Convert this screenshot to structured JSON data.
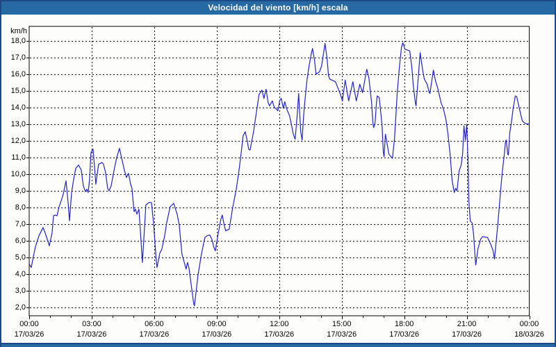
{
  "window": {
    "title": "Velocidad del viento [km/h] escala"
  },
  "colors": {
    "titlebar_bg": "#2769a3",
    "titlebar_text": "#ffffff",
    "window_border": "#1d4a86",
    "plot_bg": "#fdfdfc",
    "grid_color": "#000000",
    "line_color": "#2121cc",
    "label_color": "#000000"
  },
  "chart_data": {
    "type": "line",
    "title": "Velocidad del viento [km/h] escala",
    "xlabel": "",
    "ylabel": "km/h",
    "grid": "dashed",
    "legend": "none",
    "ylim": [
      1.5,
      18.875
    ],
    "xlim_minutes": [
      0,
      1440
    ],
    "y_ticks": [
      "18,0",
      "17,0",
      "16,0",
      "15,0",
      "14,0",
      "13,0",
      "12,0",
      "11,0",
      "10,0",
      "9,0",
      "8,0",
      "7,0",
      "6,0",
      "5,0",
      "4,0",
      "3,0",
      "2,0"
    ],
    "y_tick_values": [
      18,
      17,
      16,
      15,
      14,
      13,
      12,
      11,
      10,
      9,
      8,
      7,
      6,
      5,
      4,
      3,
      2
    ],
    "x_ticks": [
      {
        "time": "00:00",
        "date": "17/03/26",
        "minute": 0
      },
      {
        "time": "03:00",
        "date": "17/03/26",
        "minute": 180
      },
      {
        "time": "06:00",
        "date": "17/03/26",
        "minute": 360
      },
      {
        "time": "09:00",
        "date": "17/03/26",
        "minute": 540
      },
      {
        "time": "12:00",
        "date": "17/03/26",
        "minute": 720
      },
      {
        "time": "15:00",
        "date": "17/03/26",
        "minute": 900
      },
      {
        "time": "18:00",
        "date": "17/03/26",
        "minute": 1080
      },
      {
        "time": "21:00",
        "date": "17/03/26",
        "minute": 1260
      },
      {
        "time": "00:00",
        "date": "18/03/26",
        "minute": 1440
      }
    ],
    "minor_tick_every_minutes": 60,
    "series": [
      {
        "name": "Velocidad del viento",
        "units": "km/h",
        "points": [
          [
            0,
            4.6
          ],
          [
            6,
            4.4
          ],
          [
            12,
            5.05
          ],
          [
            18,
            5.65
          ],
          [
            28,
            6.3
          ],
          [
            40,
            6.8
          ],
          [
            48,
            6.35
          ],
          [
            58,
            5.7
          ],
          [
            66,
            6.5
          ],
          [
            70,
            7.5
          ],
          [
            74,
            7.55
          ],
          [
            80,
            7.5
          ],
          [
            86,
            8.05
          ],
          [
            92,
            8.4
          ],
          [
            98,
            8.8
          ],
          [
            106,
            9.6
          ],
          [
            112,
            8.3
          ],
          [
            116,
            7.2
          ],
          [
            122,
            8.9
          ],
          [
            128,
            9.7
          ],
          [
            134,
            10.35
          ],
          [
            142,
            10.55
          ],
          [
            150,
            10.25
          ],
          [
            156,
            9.3
          ],
          [
            162,
            8.95
          ],
          [
            166,
            9.1
          ],
          [
            170,
            8.9
          ],
          [
            174,
            9.7
          ],
          [
            178,
            11.3
          ],
          [
            184,
            11.5
          ],
          [
            188,
            10.5
          ],
          [
            192,
            9.4
          ],
          [
            200,
            10.6
          ],
          [
            210,
            10.7
          ],
          [
            214,
            10.6
          ],
          [
            220,
            10.1
          ],
          [
            226,
            9.15
          ],
          [
            230,
            9.0
          ],
          [
            236,
            9.3
          ],
          [
            245,
            10.3
          ],
          [
            252,
            11.0
          ],
          [
            260,
            11.55
          ],
          [
            268,
            10.8
          ],
          [
            274,
            10.25
          ],
          [
            280,
            9.8
          ],
          [
            286,
            10.05
          ],
          [
            292,
            9.4
          ],
          [
            296,
            9.15
          ],
          [
            300,
            8.2
          ],
          [
            302,
            7.75
          ],
          [
            306,
            7.9
          ],
          [
            310,
            7.6
          ],
          [
            316,
            7.9
          ],
          [
            322,
            6.0
          ],
          [
            326,
            4.7
          ],
          [
            336,
            8.15
          ],
          [
            345,
            8.3
          ],
          [
            352,
            8.3
          ],
          [
            358,
            7.1
          ],
          [
            366,
            4.75
          ],
          [
            368,
            4.4
          ],
          [
            376,
            5.25
          ],
          [
            382,
            5.5
          ],
          [
            390,
            6.3
          ],
          [
            396,
            7.1
          ],
          [
            406,
            8.05
          ],
          [
            416,
            8.25
          ],
          [
            426,
            7.6
          ],
          [
            432,
            6.95
          ],
          [
            440,
            5.2
          ],
          [
            452,
            4.3
          ],
          [
            456,
            4.7
          ],
          [
            460,
            4.4
          ],
          [
            474,
            2.2
          ],
          [
            476,
            2.1
          ],
          [
            486,
            3.9
          ],
          [
            496,
            5.2
          ],
          [
            506,
            6.2
          ],
          [
            512,
            6.3
          ],
          [
            520,
            6.35
          ],
          [
            526,
            6.1
          ],
          [
            532,
            5.6
          ],
          [
            536,
            5.4
          ],
          [
            544,
            6.4
          ],
          [
            552,
            7.3
          ],
          [
            556,
            7.55
          ],
          [
            562,
            6.9
          ],
          [
            566,
            6.6
          ],
          [
            576,
            6.7
          ],
          [
            586,
            8.0
          ],
          [
            596,
            9.05
          ],
          [
            604,
            10.2
          ],
          [
            610,
            11.2
          ],
          [
            616,
            12.3
          ],
          [
            622,
            12.55
          ],
          [
            628,
            12.0
          ],
          [
            632,
            11.5
          ],
          [
            636,
            11.45
          ],
          [
            642,
            12.1
          ],
          [
            646,
            12.55
          ],
          [
            652,
            13.4
          ],
          [
            662,
            14.8
          ],
          [
            666,
            14.9
          ],
          [
            670,
            15.05
          ],
          [
            676,
            14.55
          ],
          [
            682,
            15.1
          ],
          [
            688,
            14.3
          ],
          [
            692,
            14.1
          ],
          [
            700,
            14.4
          ],
          [
            706,
            14.0
          ],
          [
            712,
            13.9
          ],
          [
            716,
            13.8
          ],
          [
            722,
            14.45
          ],
          [
            726,
            14.55
          ],
          [
            732,
            13.95
          ],
          [
            736,
            14.35
          ],
          [
            742,
            13.9
          ],
          [
            750,
            13.5
          ],
          [
            756,
            12.9
          ],
          [
            760,
            12.45
          ],
          [
            766,
            12.1
          ],
          [
            772,
            13.6
          ],
          [
            776,
            14.85
          ],
          [
            782,
            12.55
          ],
          [
            786,
            12.05
          ],
          [
            790,
            13.4
          ],
          [
            794,
            14.4
          ],
          [
            800,
            15.65
          ],
          [
            806,
            16.5
          ],
          [
            812,
            17.2
          ],
          [
            816,
            17.55
          ],
          [
            822,
            16.8
          ],
          [
            826,
            16.0
          ],
          [
            836,
            16.15
          ],
          [
            842,
            16.5
          ],
          [
            852,
            17.85
          ],
          [
            858,
            16.9
          ],
          [
            862,
            15.9
          ],
          [
            866,
            15.7
          ],
          [
            882,
            15.55
          ],
          [
            896,
            14.8
          ],
          [
            902,
            14.4
          ],
          [
            910,
            15.65
          ],
          [
            920,
            14.4
          ],
          [
            932,
            15.55
          ],
          [
            942,
            14.4
          ],
          [
            952,
            15.4
          ],
          [
            960,
            14.9
          ],
          [
            972,
            16.3
          ],
          [
            978,
            15.8
          ],
          [
            986,
            14.3
          ],
          [
            990,
            13.0
          ],
          [
            992,
            12.8
          ],
          [
            996,
            13.1
          ],
          [
            1000,
            14.3
          ],
          [
            1002,
            14.7
          ],
          [
            1008,
            14.6
          ],
          [
            1016,
            13.0
          ],
          [
            1020,
            11.3
          ],
          [
            1022,
            11.05
          ],
          [
            1026,
            12.4
          ],
          [
            1036,
            11.2
          ],
          [
            1046,
            10.95
          ],
          [
            1052,
            12.1
          ],
          [
            1060,
            14.9
          ],
          [
            1066,
            16.4
          ],
          [
            1072,
            17.6
          ],
          [
            1076,
            17.9
          ],
          [
            1082,
            17.5
          ],
          [
            1090,
            17.45
          ],
          [
            1096,
            17.4
          ],
          [
            1102,
            16.4
          ],
          [
            1106,
            15.35
          ],
          [
            1112,
            14.3
          ],
          [
            1114,
            14.1
          ],
          [
            1126,
            17.3
          ],
          [
            1133,
            16.25
          ],
          [
            1138,
            15.7
          ],
          [
            1146,
            15.4
          ],
          [
            1152,
            14.9
          ],
          [
            1154,
            14.85
          ],
          [
            1164,
            16.25
          ],
          [
            1170,
            15.6
          ],
          [
            1176,
            15.2
          ],
          [
            1186,
            14.3
          ],
          [
            1193,
            13.9
          ],
          [
            1200,
            13.3
          ],
          [
            1206,
            12.4
          ],
          [
            1212,
            11.2
          ],
          [
            1218,
            9.6
          ],
          [
            1224,
            8.9
          ],
          [
            1228,
            9.15
          ],
          [
            1232,
            9.0
          ],
          [
            1238,
            10.2
          ],
          [
            1244,
            10.55
          ],
          [
            1248,
            11.2
          ],
          [
            1252,
            12.9
          ],
          [
            1256,
            12.05
          ],
          [
            1260,
            13.0
          ],
          [
            1264,
            10.5
          ],
          [
            1266,
            8.4
          ],
          [
            1270,
            7.2
          ],
          [
            1276,
            7.05
          ],
          [
            1280,
            6.3
          ],
          [
            1284,
            5.0
          ],
          [
            1286,
            4.55
          ],
          [
            1292,
            5.5
          ],
          [
            1300,
            6.1
          ],
          [
            1306,
            6.25
          ],
          [
            1320,
            6.2
          ],
          [
            1330,
            5.75
          ],
          [
            1336,
            5.4
          ],
          [
            1340,
            4.9
          ],
          [
            1346,
            6.2
          ],
          [
            1350,
            7.1
          ],
          [
            1354,
            8.1
          ],
          [
            1358,
            9.1
          ],
          [
            1362,
            10.05
          ],
          [
            1368,
            11.15
          ],
          [
            1372,
            12.0
          ],
          [
            1374,
            12.05
          ],
          [
            1378,
            11.2
          ],
          [
            1380,
            11.15
          ],
          [
            1384,
            12.5
          ],
          [
            1388,
            13.0
          ],
          [
            1394,
            14.0
          ],
          [
            1400,
            14.7
          ],
          [
            1404,
            14.65
          ],
          [
            1412,
            13.9
          ],
          [
            1420,
            13.2
          ],
          [
            1428,
            13.05
          ],
          [
            1440,
            13.0
          ]
        ]
      }
    ]
  }
}
